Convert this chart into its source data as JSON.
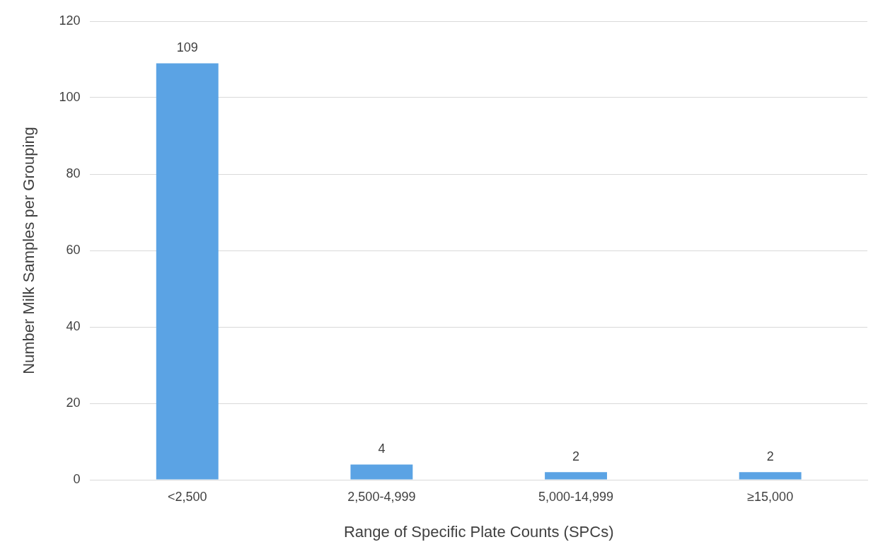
{
  "chart_data": {
    "type": "bar",
    "xlabel": "Range of Specific Plate Counts (SPCs)",
    "ylabel": "Number Milk Samples per Grouping",
    "categories": [
      "<2,500",
      "2,500-4,999",
      "5,000-14,999",
      "≥15,000"
    ],
    "values": [
      109,
      4,
      2,
      2
    ],
    "color": "#5ba3e4",
    "ylim": [
      0,
      120
    ],
    "yticks": [
      0,
      20,
      40,
      60,
      80,
      100,
      120
    ],
    "grid": "y",
    "data_labels": true,
    "legend": false
  }
}
